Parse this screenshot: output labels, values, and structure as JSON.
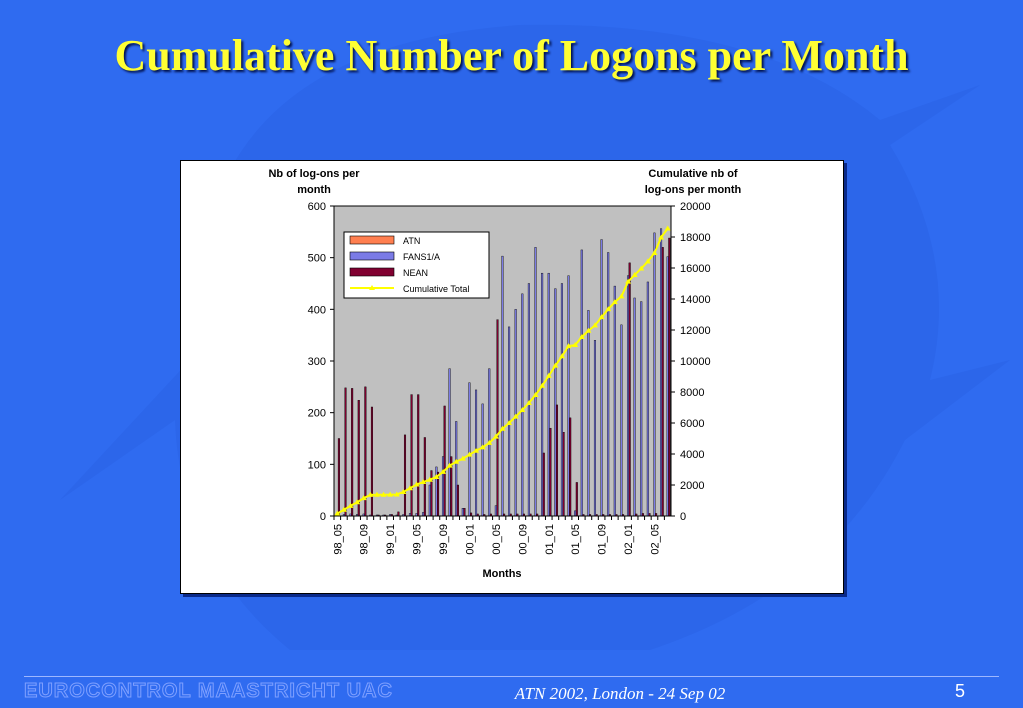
{
  "slide": {
    "title": "Cumulative Number of Logons per Month",
    "footer_org": "EUROCONTROL MAASTRICHT UAC",
    "footer_event": "ATN 2002, London - 24 Sep 02",
    "page_number": "5"
  },
  "colors": {
    "background": "#2F6BF0",
    "title": "#FFFF33",
    "plot_area": "#C0C0C0",
    "atn": "#FF7F50",
    "fans": "#7B7BE6",
    "nean": "#800030",
    "cumulative": "#FFFF00"
  },
  "chart_data": {
    "type": "bar+line",
    "title": "",
    "xlabel": "Months",
    "ylabel": "Nb of log-ons per month",
    "y2label": "Cumulative nb of log-ons per month",
    "ylim": [
      0,
      600
    ],
    "y2lim": [
      0,
      20000
    ],
    "yticks": [
      0,
      100,
      200,
      300,
      400,
      500,
      600
    ],
    "y2ticks": [
      0,
      2000,
      4000,
      6000,
      8000,
      10000,
      12000,
      14000,
      16000,
      18000,
      20000
    ],
    "categories": [
      "98_05",
      "98_06",
      "98_07",
      "98_08",
      "98_09",
      "98_10",
      "98_11",
      "98_12",
      "99_01",
      "99_02",
      "99_03",
      "99_04",
      "99_05",
      "99_06",
      "99_07",
      "99_08",
      "99_09",
      "99_10",
      "99_11",
      "99_12",
      "00_01",
      "00_02",
      "00_03",
      "00_04",
      "00_05",
      "00_06",
      "00_07",
      "00_08",
      "00_09",
      "00_10",
      "00_11",
      "00_12",
      "01_01",
      "01_02",
      "01_03",
      "01_04",
      "01_05",
      "01_06",
      "01_07",
      "01_08",
      "01_09",
      "01_10",
      "01_11",
      "01_12",
      "02_01",
      "02_02",
      "02_03",
      "02_04",
      "02_05",
      "02_06",
      "02_07"
    ],
    "tick_labels": [
      "98_05",
      "98_09",
      "99_01",
      "99_05",
      "99_09",
      "00_01",
      "00_05",
      "00_09",
      "01_01",
      "01_05",
      "01_09",
      "02_01",
      "02_05"
    ],
    "series": [
      {
        "name": "ATN",
        "kind": "bar",
        "values": [
          0,
          0,
          0,
          0,
          0,
          0,
          0,
          0,
          0,
          0,
          0,
          0,
          0,
          0,
          0,
          0,
          0,
          0,
          0,
          0,
          0,
          0,
          0,
          0,
          0,
          0,
          0,
          0,
          0,
          0,
          0,
          0,
          0,
          0,
          0,
          0,
          0,
          0,
          0,
          0,
          0,
          0,
          0,
          0,
          0,
          0,
          0,
          0,
          0,
          0,
          0
        ]
      },
      {
        "name": "FANS1/A",
        "kind": "bar",
        "values": [
          2,
          3,
          4,
          3,
          4,
          2,
          2,
          2,
          3,
          2,
          3,
          5,
          5,
          7,
          60,
          95,
          115,
          285,
          183,
          15,
          258,
          244,
          217,
          285,
          20,
          503,
          366,
          400,
          430,
          450,
          520,
          470,
          470,
          440,
          450,
          465,
          10,
          515,
          398,
          340,
          535,
          510,
          445,
          370,
          465,
          422,
          415,
          453,
          548,
          556,
          502
        ]
      },
      {
        "name": "NEAN",
        "kind": "bar",
        "values": [
          150,
          248,
          247,
          224,
          250,
          211,
          2,
          2,
          3,
          8,
          157,
          235,
          235,
          152,
          88,
          85,
          213,
          115,
          60,
          15,
          6,
          4,
          3,
          4,
          380,
          4,
          4,
          4,
          4,
          4,
          4,
          122,
          170,
          215,
          162,
          190,
          65,
          3,
          3,
          3,
          3,
          3,
          3,
          3,
          490,
          4,
          5,
          5,
          5,
          520,
          538
        ]
      },
      {
        "name": "Cumulative Total",
        "kind": "line",
        "axis": "y2",
        "values": [
          150,
          400,
          650,
          890,
          1150,
          1360,
          1370,
          1375,
          1380,
          1390,
          1550,
          1790,
          2030,
          2190,
          2340,
          2520,
          2850,
          3250,
          3500,
          3700,
          3960,
          4210,
          4430,
          4720,
          5120,
          5630,
          6000,
          6410,
          6840,
          7290,
          7810,
          8400,
          9040,
          9700,
          10310,
          10960,
          11030,
          11550,
          11950,
          12300,
          12830,
          13350,
          13800,
          14170,
          15120,
          15550,
          15970,
          16420,
          16970,
          17970,
          18550
        ]
      }
    ],
    "legend": [
      "ATN",
      "FANS1/A",
      "NEAN",
      "Cumulative Total"
    ],
    "legend_position": "top-left inside plot"
  }
}
